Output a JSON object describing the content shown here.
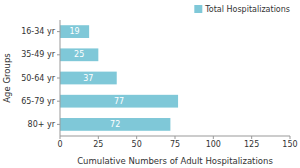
{
  "chart_data": {
    "type": "bar",
    "orientation": "horizontal",
    "categories": [
      "16-34 yr",
      "35-49 yr",
      "50-64 yr",
      "65-79 yr",
      "80+ yr"
    ],
    "series": [
      {
        "name": "Total Hospitalizations",
        "color": "#7fc8d8",
        "values": [
          19,
          25,
          37,
          77,
          72
        ]
      }
    ],
    "xlabel": "Cumulative Numbers of Adult Hospitalizations",
    "ylabel": "Age Groups",
    "xlim": [
      0,
      150
    ],
    "xticks": [
      0,
      25,
      50,
      75,
      100,
      125,
      150
    ],
    "data_labels": true,
    "legend": "upper right",
    "grid": false
  }
}
